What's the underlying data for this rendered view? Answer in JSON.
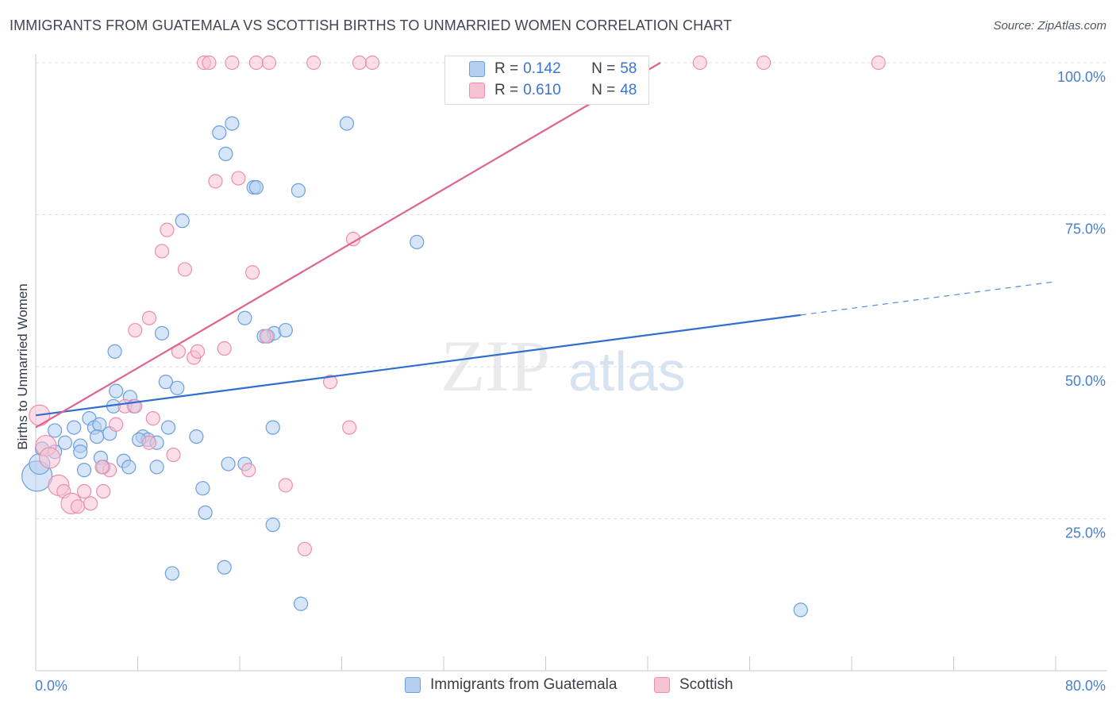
{
  "title": "IMMIGRANTS FROM GUATEMALA VS SCOTTISH BIRTHS TO UNMARRIED WOMEN CORRELATION CHART",
  "source": "Source: ZipAtlas.com",
  "legend_top": [
    {
      "r_label": "R = ",
      "r_value": "0.142",
      "n_label": "N = ",
      "n_value": "58"
    },
    {
      "r_label": "R = ",
      "r_value": "0.610",
      "n_label": "N = ",
      "n_value": "48"
    }
  ],
  "colors": {
    "guatemala_fill": "#b4cff0",
    "guatemala_stroke": "#6d9fdc",
    "guatemala_line": "#2f6fd0",
    "scottish_fill": "#f7c3d3",
    "scottish_stroke": "#eb8faf",
    "scottish_line": "#e0628e"
  },
  "chart_data": {
    "type": "scatter",
    "title": "IMMIGRANTS FROM GUATEMALA VS SCOTTISH BIRTHS TO UNMARRIED WOMEN CORRELATION CHART",
    "xlabel": "",
    "ylabel": "Births to Unmarried Women",
    "xlim": [
      0,
      80
    ],
    "ylim": [
      0,
      100
    ],
    "x_tick_labels": [
      "0.0%",
      "80.0%"
    ],
    "y_tick_labels": [
      "25.0%",
      "50.0%",
      "75.0%",
      "100.0%"
    ],
    "y_tick_values": [
      25,
      50,
      75,
      100
    ],
    "grid": true,
    "legend_position": "top-center",
    "series": [
      {
        "name": "Immigrants from Guatemala",
        "r": 0.142,
        "n": 58,
        "trend": {
          "x0": 0,
          "y0": 42,
          "x1": 60,
          "y1": 58.5,
          "dashed_to_x": 80,
          "dashed_to_y": 64
        },
        "points": [
          [
            0.1,
            32,
            3
          ],
          [
            0.3,
            34,
            2
          ],
          [
            0.5,
            36.5,
            1
          ],
          [
            1.5,
            39.5,
            1
          ],
          [
            1.5,
            36,
            1
          ],
          [
            2.3,
            37.5,
            1
          ],
          [
            3,
            40,
            1
          ],
          [
            3.5,
            37,
            1
          ],
          [
            3.5,
            36,
            1
          ],
          [
            3.8,
            33,
            1
          ],
          [
            4.2,
            41.5,
            1
          ],
          [
            4.6,
            40,
            1
          ],
          [
            5,
            40.5,
            1
          ],
          [
            5.1,
            35,
            1
          ],
          [
            5.3,
            33.5,
            1
          ],
          [
            5.8,
            39,
            1
          ],
          [
            6.2,
            52.5,
            1
          ],
          [
            6.3,
            46,
            1
          ],
          [
            6.1,
            43.5,
            1
          ],
          [
            6.9,
            34.5,
            1
          ],
          [
            7.4,
            45,
            1
          ],
          [
            7.3,
            33.5,
            1
          ],
          [
            7.7,
            43.5,
            1
          ],
          [
            8.4,
            38.5,
            1
          ],
          [
            8.8,
            38,
            1
          ],
          [
            9.5,
            33.5,
            1
          ],
          [
            9.9,
            55.5,
            1
          ],
          [
            10.2,
            47.5,
            1
          ],
          [
            10.4,
            40,
            1
          ],
          [
            11.1,
            46.5,
            1
          ],
          [
            11.5,
            74,
            1
          ],
          [
            10.7,
            16,
            1
          ],
          [
            12.6,
            38.5,
            1
          ],
          [
            13.1,
            30,
            1
          ],
          [
            13.3,
            26,
            1
          ],
          [
            14.4,
            88.5,
            1
          ],
          [
            14.9,
            85,
            1
          ],
          [
            15.4,
            90,
            1
          ],
          [
            15.1,
            34,
            1
          ],
          [
            14.8,
            17,
            1
          ],
          [
            16.4,
            58,
            1
          ],
          [
            17.1,
            79.5,
            1
          ],
          [
            17.3,
            79.5,
            1
          ],
          [
            18.2,
            55,
            1
          ],
          [
            18.7,
            55.5,
            1
          ],
          [
            19.6,
            56,
            1
          ],
          [
            18.6,
            40,
            1
          ],
          [
            20.6,
            79,
            1
          ],
          [
            20.8,
            11,
            1
          ],
          [
            24.4,
            90,
            1
          ],
          [
            29.9,
            70.5,
            1
          ],
          [
            18.6,
            24,
            1
          ],
          [
            60,
            10,
            1
          ],
          [
            17.9,
            55,
            1
          ],
          [
            9.5,
            37.5,
            1
          ],
          [
            16.4,
            34,
            1
          ],
          [
            8.1,
            38,
            1
          ],
          [
            4.8,
            38.5,
            1
          ]
        ]
      },
      {
        "name": "Scottish",
        "r": 0.61,
        "n": 48,
        "trend": {
          "x0": 0,
          "y0": 40,
          "x1": 49,
          "y1": 100
        },
        "points": [
          [
            0.3,
            42,
            2
          ],
          [
            0.8,
            37,
            2
          ],
          [
            1.1,
            35,
            2
          ],
          [
            1.8,
            30.5,
            2
          ],
          [
            2.2,
            29.5,
            1
          ],
          [
            2.8,
            27.5,
            2
          ],
          [
            3.3,
            27,
            1
          ],
          [
            3.8,
            29.5,
            1
          ],
          [
            4.3,
            27.5,
            1
          ],
          [
            5.3,
            29.5,
            1
          ],
          [
            5.8,
            33,
            1
          ],
          [
            5.2,
            33.5,
            1
          ],
          [
            6.3,
            40.5,
            1
          ],
          [
            7.0,
            43.5,
            1
          ],
          [
            7.8,
            43.5,
            1
          ],
          [
            7.8,
            56,
            1
          ],
          [
            8.9,
            37.5,
            1
          ],
          [
            8.9,
            58,
            1
          ],
          [
            9.2,
            41.5,
            1
          ],
          [
            9.9,
            69,
            1
          ],
          [
            10.3,
            72.5,
            1
          ],
          [
            10.8,
            35.5,
            1
          ],
          [
            11.7,
            66,
            1
          ],
          [
            11.2,
            52.5,
            1
          ],
          [
            12.4,
            51.5,
            1
          ],
          [
            12.7,
            52.5,
            1
          ],
          [
            13.2,
            100,
            1
          ],
          [
            13.6,
            100,
            1
          ],
          [
            14.1,
            80.5,
            1
          ],
          [
            14.8,
            53,
            1
          ],
          [
            15.4,
            100,
            1
          ],
          [
            15.9,
            81,
            1
          ],
          [
            16.7,
            33,
            1
          ],
          [
            17.0,
            65.5,
            1
          ],
          [
            17.3,
            100,
            1
          ],
          [
            18.3,
            100,
            1
          ],
          [
            18.1,
            55,
            1
          ],
          [
            19.6,
            30.5,
            1
          ],
          [
            21.1,
            20,
            1
          ],
          [
            21.8,
            100,
            1
          ],
          [
            23.1,
            47.5,
            1
          ],
          [
            24.6,
            40,
            1
          ],
          [
            24.9,
            71,
            1
          ],
          [
            25.4,
            100,
            1
          ],
          [
            26.4,
            100,
            1
          ],
          [
            52.1,
            100,
            1
          ],
          [
            57.1,
            100,
            1
          ],
          [
            66.1,
            100,
            1
          ]
        ]
      }
    ]
  },
  "bottom_legend": [
    "Immigrants from Guatemala",
    "Scottish"
  ],
  "watermark": {
    "zip": "ZIP",
    "atlas": "atlas"
  }
}
